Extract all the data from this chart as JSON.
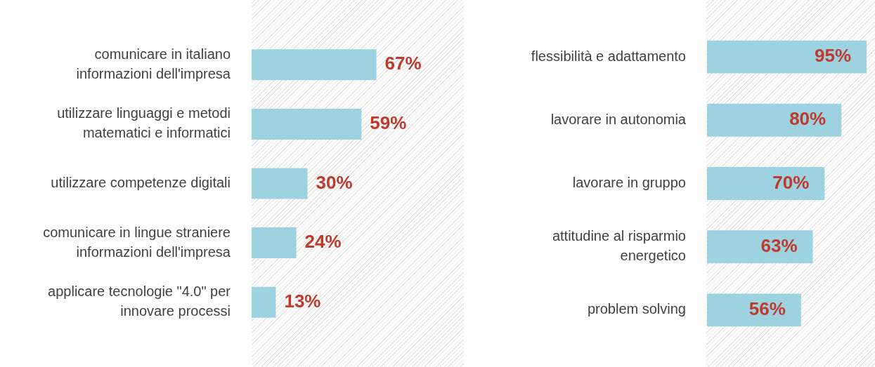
{
  "chart_data": [
    {
      "type": "bar",
      "orientation": "horizontal",
      "categories": [
        "comunicare in italiano informazioni dell'impresa",
        "utilizzare linguaggi e metodi matematici e informatici",
        "utilizzare competenze digitali",
        "comunicare in lingue straniere informazioni dell'impresa",
        "applicare tecnologie \"4.0\" per innovare processi"
      ],
      "values": [
        67,
        59,
        30,
        24,
        13
      ],
      "value_labels": [
        "67%",
        "59%",
        "30%",
        "24%",
        "13%"
      ],
      "color": "#9dd3e0",
      "legend": false,
      "tick_labels": "y"
    },
    {
      "type": "bar",
      "orientation": "horizontal",
      "categories": [
        "flessibilità e adattamento",
        "lavorare in autonomia",
        "lavorare in gruppo",
        "attitudine al risparmio energetico",
        "problem solving"
      ],
      "values": [
        95,
        80,
        70,
        63,
        56
      ],
      "value_labels": [
        "95%",
        "80%",
        "70%",
        "63%",
        "56%"
      ],
      "color": "#9dd3e0",
      "legend": false,
      "tick_labels": "y"
    }
  ]
}
